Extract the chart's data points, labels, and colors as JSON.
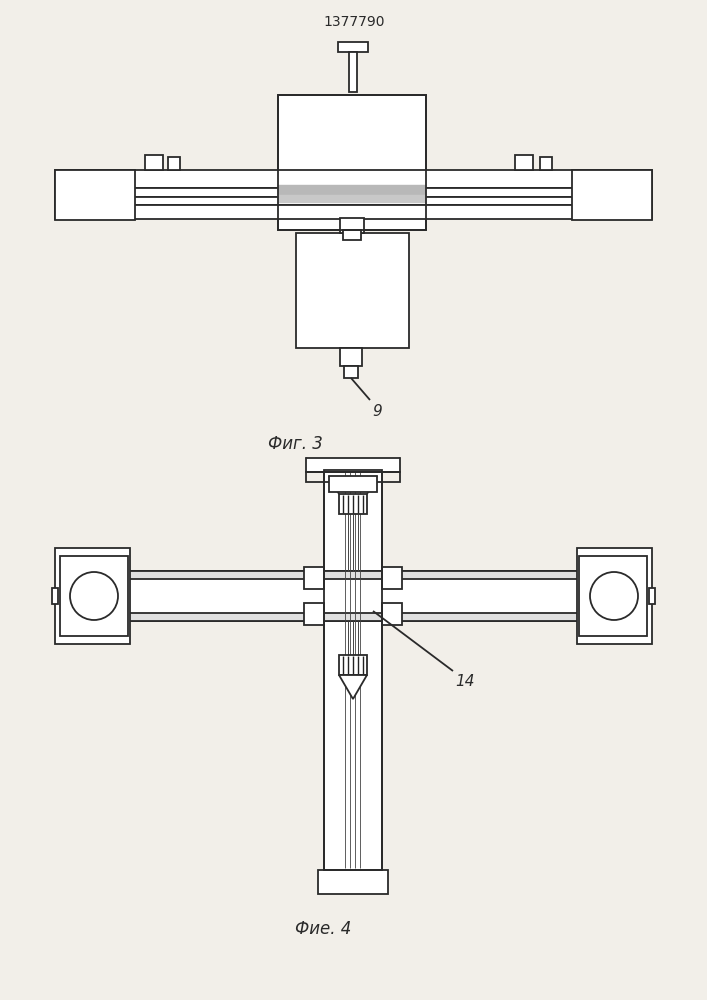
{
  "title": "1377790",
  "fig3_label": "Фиг. 3",
  "fig4_label": "Фие. 4",
  "label_9": "9",
  "label_14": "14",
  "bg_color": "#f2efe9",
  "line_color": "#2a2a2a",
  "lw": 1.3
}
